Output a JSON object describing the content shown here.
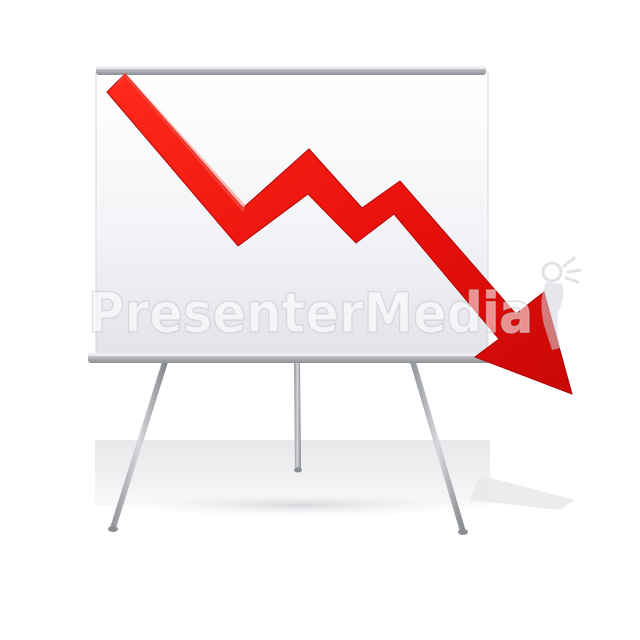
{
  "scene": {
    "description_free": true,
    "arrow_color": "#e8100c",
    "board_color": "#f4f5f8",
    "frame_color": "#b9bcc2"
  },
  "watermark": {
    "text": "PresenterMedia"
  }
}
